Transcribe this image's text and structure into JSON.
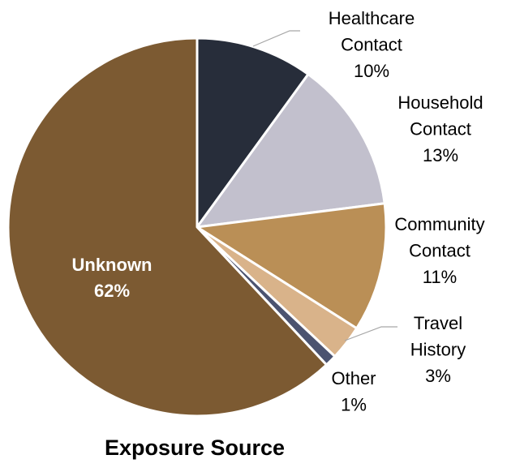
{
  "chart_data": {
    "type": "pie",
    "title": "Exposure Source",
    "slices": [
      {
        "label": "Healthcare Contact",
        "label_lines": [
          "Healthcare",
          "Contact"
        ],
        "percent_label": "10%",
        "value": 10,
        "color": "#272D3A"
      },
      {
        "label": "Household Contact",
        "label_lines": [
          "Household",
          "Contact"
        ],
        "percent_label": "13%",
        "value": 13,
        "color": "#C2C0CD"
      },
      {
        "label": "Community Contact",
        "label_lines": [
          "Community",
          "Contact"
        ],
        "percent_label": "11%",
        "value": 11,
        "color": "#BA8F56"
      },
      {
        "label": "Travel History",
        "label_lines": [
          "Travel",
          "History"
        ],
        "percent_label": "3%",
        "value": 3,
        "color": "#D9B38A"
      },
      {
        "label": "Other",
        "label_lines": [
          "Other"
        ],
        "percent_label": "1%",
        "value": 1,
        "color": "#4B5370"
      },
      {
        "label": "Unknown",
        "label_lines": [
          "Unknown"
        ],
        "percent_label": "62%",
        "value": 62,
        "color": "#7C5A32"
      }
    ],
    "start_angle": "12 o'clock",
    "direction": "clockwise",
    "legend": "none",
    "data_labels": "outside, except Unknown inside in bold white"
  }
}
